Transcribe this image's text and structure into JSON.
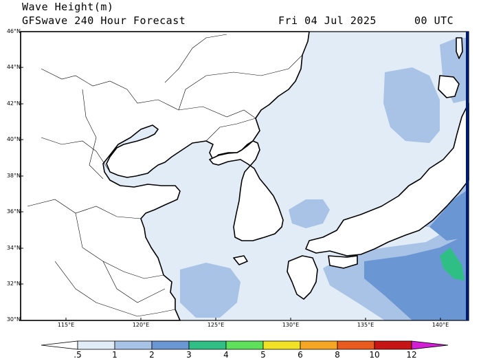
{
  "header": {
    "title_line1": "Wave Height(m)",
    "title_line2": "GFSwave 240 Hour Forecast",
    "date": "Fri 04 Jul 2025",
    "time": "00 UTC"
  },
  "map": {
    "lat_labels": [
      "46°N",
      "44°N",
      "42°N",
      "40°N",
      "38°N",
      "36°N",
      "34°N",
      "32°N",
      "30°N"
    ],
    "lon_labels": [
      "115°E",
      "120°E",
      "125°E",
      "130°E",
      "135°E",
      "140°E"
    ]
  },
  "colorbar": {
    "labels": [
      ".5",
      "1",
      "2",
      "3",
      "4",
      "5",
      "6",
      "8",
      "10",
      "12"
    ],
    "colors": [
      "#e1ecf6",
      "#a9c3e6",
      "#6a97d4",
      "#2fbf85",
      "#5fe05a",
      "#f2e226",
      "#f5a623",
      "#e85a1d",
      "#c71414",
      "#d21fd6"
    ]
  },
  "colors": {
    "land": "#ffffff",
    "sea_low": "#e1ecf6",
    "sea_mid": "#a9c3e6",
    "sea_high": "#6a97d4",
    "sea_peak": "#2fbf85"
  }
}
